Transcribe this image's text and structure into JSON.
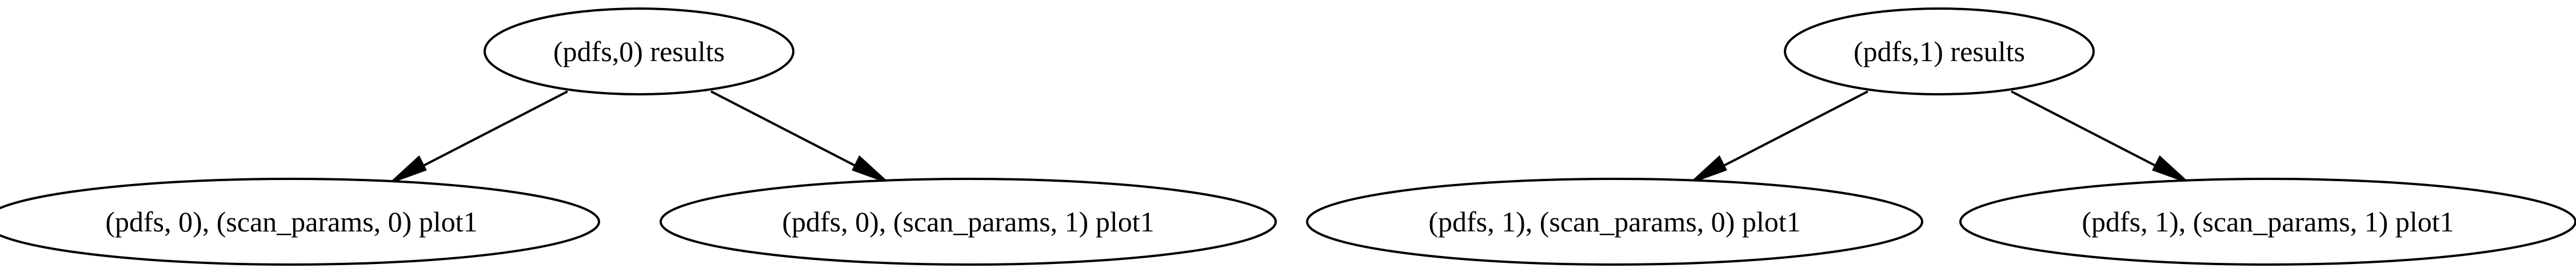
{
  "graph": {
    "nodes": [
      {
        "id": "n0",
        "label": "(pdfs,0) results"
      },
      {
        "id": "n1",
        "label": "(pdfs,1) results"
      },
      {
        "id": "n0a",
        "label": "(pdfs, 0), (scan_params, 0) plot1"
      },
      {
        "id": "n0b",
        "label": "(pdfs, 0), (scan_params, 1) plot1"
      },
      {
        "id": "n1a",
        "label": "(pdfs, 1), (scan_params, 0) plot1"
      },
      {
        "id": "n1b",
        "label": "(pdfs, 1), (scan_params, 1) plot1"
      }
    ],
    "edges": [
      {
        "from": "n0",
        "to": "n0a"
      },
      {
        "from": "n0",
        "to": "n0b"
      },
      {
        "from": "n1",
        "to": "n1a"
      },
      {
        "from": "n1",
        "to": "n1b"
      }
    ]
  }
}
